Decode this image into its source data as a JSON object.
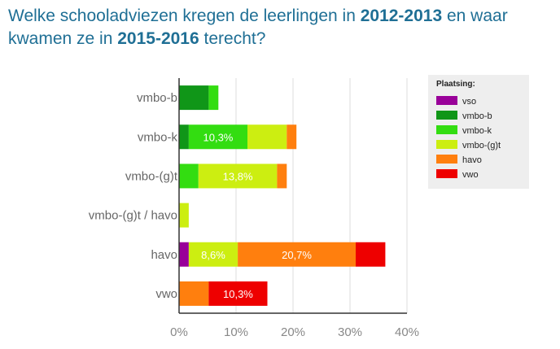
{
  "title": {
    "part1": "Welke schooladviezen kregen de leerlingen in ",
    "year1": "2012-2013",
    "part2": " en waar kwamen ze in ",
    "year2": "2015-2016",
    "part3": " terecht?"
  },
  "chart_data": {
    "type": "bar",
    "orientation": "horizontal",
    "stacked": true,
    "categories": [
      "vmbo-b",
      "vmbo-k",
      "vmbo-(g)t",
      "vmbo-(g)t / havo",
      "havo",
      "vwo"
    ],
    "series": [
      {
        "name": "vso",
        "color": "#990099",
        "values": [
          0,
          0,
          0,
          0,
          1.7,
          0
        ]
      },
      {
        "name": "vmbo-b",
        "color": "#109618",
        "values": [
          5.2,
          1.7,
          0,
          0,
          0,
          0
        ]
      },
      {
        "name": "vmbo-k",
        "color": "#33dd11",
        "values": [
          1.7,
          10.3,
          3.4,
          0,
          0,
          0
        ]
      },
      {
        "name": "vmbo-(g)t",
        "color": "#ccee11",
        "values": [
          0,
          6.9,
          13.8,
          1.7,
          8.6,
          0
        ]
      },
      {
        "name": "havo",
        "color": "#ff7f0e",
        "values": [
          0,
          1.7,
          1.7,
          0,
          20.7,
          5.2
        ]
      },
      {
        "name": "vwo",
        "color": "#ee0000",
        "values": [
          0,
          0,
          0,
          0,
          5.2,
          10.3
        ]
      }
    ],
    "data_labels": [
      {
        "category": "vmbo-k",
        "series": "vmbo-k",
        "text": "10,3%"
      },
      {
        "category": "vmbo-(g)t",
        "series": "vmbo-(g)t",
        "text": "13,8%"
      },
      {
        "category": "havo",
        "series": "vmbo-(g)t",
        "text": "8,6%"
      },
      {
        "category": "havo",
        "series": "havo",
        "text": "20,7%"
      },
      {
        "category": "vwo",
        "series": "vwo",
        "text": "10,3%"
      }
    ],
    "xlim": [
      0,
      40
    ],
    "xticks": [
      "0%",
      "10%",
      "20%",
      "30%",
      "40%"
    ],
    "xgrid": true,
    "legend": {
      "title": "Plaatsing:",
      "placement": "right"
    }
  }
}
